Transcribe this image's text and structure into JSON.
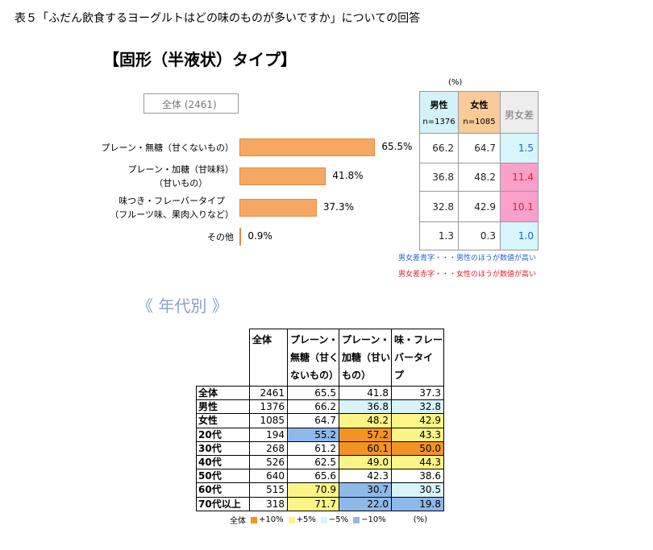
{
  "title": "表５「ふだん飲食するヨーグルトはどの味のものが多いですか」についての回答",
  "chart_data": {
    "type": "bar",
    "orientation": "horizontal",
    "title": "【固形（半液状）タイプ】",
    "total_label": "全体 (2461)",
    "categories": [
      "プレーン・無糖（甘くないもの）",
      "プレーン・加糖（甘味料）\n（甘いもの）",
      "味つき・フレーバータイプ\n（フルーツ味、果肉入りなど）",
      "その他"
    ],
    "values": [
      65.5,
      41.8,
      37.3,
      0.9
    ],
    "value_labels": [
      "65.5%",
      "41.8%",
      "37.3%",
      "0.9%"
    ],
    "color": "#f6a862"
  },
  "gender_table": {
    "unit": "(%)",
    "headers": [
      {
        "label": "男性",
        "n": "n=1376",
        "fill": "#d4f0f8"
      },
      {
        "label": "女性",
        "n": "n=1085",
        "fill": "#f9cb98"
      },
      {
        "label": "男女差",
        "fill": "#ededed"
      }
    ],
    "rows": [
      {
        "male": "66.2",
        "female": "64.7",
        "diff": "1.5",
        "diff_color": "#1f5fd0",
        "diff_fill": "#d6f6fb"
      },
      {
        "male": "36.8",
        "female": "48.2",
        "diff": "11.4",
        "diff_color": "#e0232a",
        "diff_fill": "#fb9fcb"
      },
      {
        "male": "32.8",
        "female": "42.9",
        "diff": "10.1",
        "diff_color": "#e0232a",
        "diff_fill": "#fb9fcb"
      },
      {
        "male": "1.3",
        "female": "0.3",
        "diff": "1.0",
        "diff_color": "#1f5fd0",
        "diff_fill": "#d6f6fb"
      }
    ]
  },
  "notes": [
    {
      "text": "男女差青字・・・男性のほうが数値が高い",
      "color": "#2a62d8"
    },
    {
      "text": "男女差赤字・・・女性のほうが数値が高い",
      "color": "#e0232a"
    }
  ],
  "age_section": {
    "title": "《 年代別 》",
    "columns": [
      "全体",
      "プレーン・\n無糖（甘く\nないもの）",
      "プレーン・\n加糖（甘い\nもの）",
      "味・フレー\nバータイ\nプ"
    ],
    "rows": [
      {
        "label": "全体",
        "n": "2461",
        "values": [
          "65.5",
          "41.8",
          "37.3"
        ],
        "fills": [
          null,
          null,
          null
        ]
      },
      {
        "label": "男性",
        "n": "1376",
        "values": [
          "66.2",
          "36.8",
          "32.8"
        ],
        "fills": [
          null,
          "#d8f4fa",
          "#d8f4fa"
        ]
      },
      {
        "label": "女性",
        "n": "1085",
        "values": [
          "64.7",
          "48.2",
          "42.9"
        ],
        "fills": [
          null,
          "#fcf486",
          "#fcf486"
        ]
      },
      {
        "label": "20代",
        "n": "194",
        "values": [
          "55.2",
          "57.2",
          "43.3"
        ],
        "fills": [
          "#8fb8ea",
          "#f39422",
          "#fcf486"
        ]
      },
      {
        "label": "30代",
        "n": "268",
        "values": [
          "61.2",
          "60.1",
          "50.0"
        ],
        "fills": [
          null,
          "#f39422",
          "#f39422"
        ]
      },
      {
        "label": "40代",
        "n": "526",
        "values": [
          "62.5",
          "49.0",
          "44.3"
        ],
        "fills": [
          null,
          "#fcf486",
          "#fcf486"
        ]
      },
      {
        "label": "50代",
        "n": "640",
        "values": [
          "65.6",
          "42.3",
          "38.6"
        ],
        "fills": [
          null,
          null,
          null
        ]
      },
      {
        "label": "60代",
        "n": "515",
        "values": [
          "70.9",
          "30.7",
          "30.5"
        ],
        "fills": [
          "#fcf486",
          "#8fb8ea",
          "#d8f4fa"
        ]
      },
      {
        "label": "70代以上",
        "n": "318",
        "values": [
          "71.7",
          "22.0",
          "19.8"
        ],
        "fills": [
          "#fcf486",
          "#8fb8ea",
          "#8fb8ea"
        ]
      }
    ],
    "legend": {
      "label": "全体",
      "items": [
        {
          "label": "+10%",
          "color": "#f39422"
        },
        {
          "label": "+5%",
          "color": "#fcf486"
        },
        {
          "label": "−5%",
          "color": "#d8f4fa"
        },
        {
          "label": "−10%",
          "color": "#8fb8ea"
        }
      ],
      "unit": "(%)"
    }
  }
}
